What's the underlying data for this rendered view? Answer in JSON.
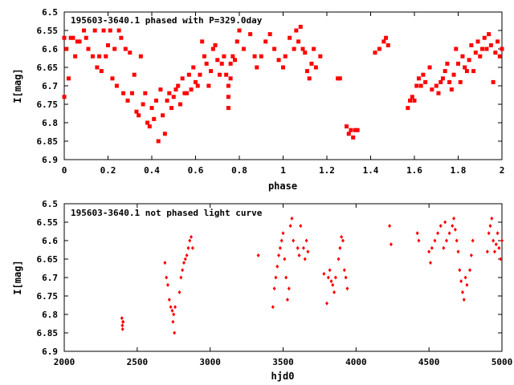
{
  "chart_data": [
    {
      "type": "scatter",
      "title": "195603-3640.1 phased with P=329.0day",
      "xlabel": "phase",
      "ylabel": "I[mag]",
      "xlim": [
        0,
        2
      ],
      "ylim": [
        6.9,
        6.5
      ],
      "y_inverted": true,
      "xticks": [
        "0",
        "0.2",
        "0.4",
        "0.6",
        "0.8",
        "1",
        "1.2",
        "1.4",
        "1.6",
        "1.8",
        "2"
      ],
      "xtick_values": [
        0,
        0.2,
        0.4,
        0.6,
        0.8,
        1.0,
        1.2,
        1.4,
        1.6,
        1.8,
        2.0
      ],
      "yticks": [
        "6.5",
        "6.55",
        "6.6",
        "6.65",
        "6.7",
        "6.75",
        "6.8",
        "6.85",
        "6.9"
      ],
      "ytick_values": [
        6.5,
        6.55,
        6.6,
        6.65,
        6.7,
        6.75,
        6.8,
        6.85,
        6.9
      ],
      "grid": false,
      "marker_color": "#ff0000",
      "series": [
        {
          "x": [
            0.0,
            0.0,
            0.01,
            0.02,
            0.03,
            0.04,
            0.05,
            0.06,
            0.07,
            0.09,
            0.1,
            0.11,
            0.13,
            0.14,
            0.15,
            0.16,
            0.17,
            0.18,
            0.19,
            0.2,
            0.21,
            0.22,
            0.23,
            0.24,
            0.25,
            0.26,
            0.27,
            0.28,
            0.29,
            0.3,
            0.31,
            0.32,
            0.33,
            0.34,
            0.35,
            0.36,
            0.37,
            0.38,
            0.39,
            0.4,
            0.41,
            0.42,
            0.43,
            0.44,
            0.45,
            0.46,
            0.47,
            0.48,
            0.49,
            0.5,
            0.51,
            0.52,
            0.53,
            0.54,
            0.55,
            0.56,
            0.57,
            0.58,
            0.59,
            0.6,
            0.61,
            0.62,
            0.63,
            0.64,
            0.65,
            0.66,
            0.67,
            0.68,
            0.69,
            0.7,
            0.71,
            0.72,
            0.73,
            0.74,
            0.75,
            0.75,
            0.75,
            0.76,
            0.76,
            0.77,
            0.78,
            0.79,
            0.8,
            0.82,
            0.85,
            0.87,
            0.88,
            0.9,
            0.92,
            0.94,
            0.96,
            0.98,
            1.0,
            1.01,
            1.03,
            1.05,
            1.06,
            1.07,
            1.08,
            1.09,
            1.1,
            1.11,
            1.12,
            1.13,
            1.14,
            1.15,
            1.17,
            1.25,
            1.26,
            1.29,
            1.3,
            1.31,
            1.32,
            1.33,
            1.34,
            1.42,
            1.44,
            1.46,
            1.47,
            1.48,
            1.57,
            1.58,
            1.59,
            1.6,
            1.61,
            1.62,
            1.63,
            1.64,
            1.65,
            1.67,
            1.68,
            1.7,
            1.71,
            1.72,
            1.73,
            1.74,
            1.75,
            1.76,
            1.77,
            1.78,
            1.79,
            1.8,
            1.81,
            1.82,
            1.83,
            1.84,
            1.85,
            1.86,
            1.87,
            1.88,
            1.89,
            1.9,
            1.91,
            1.92,
            1.93,
            1.94,
            1.95,
            1.96,
            1.97,
            1.98,
            1.99,
            2.0
          ],
          "y": [
            6.57,
            6.73,
            6.6,
            6.68,
            6.57,
            6.57,
            6.62,
            6.58,
            6.58,
            6.55,
            6.57,
            6.6,
            6.62,
            6.55,
            6.65,
            6.62,
            6.66,
            6.55,
            6.62,
            6.59,
            6.55,
            6.68,
            6.6,
            6.7,
            6.55,
            6.57,
            6.72,
            6.6,
            6.74,
            6.61,
            6.72,
            6.67,
            6.77,
            6.78,
            6.62,
            6.75,
            6.72,
            6.8,
            6.81,
            6.76,
            6.79,
            6.74,
            6.85,
            6.71,
            6.78,
            6.83,
            6.74,
            6.72,
            6.76,
            6.73,
            6.71,
            6.7,
            6.75,
            6.68,
            6.72,
            6.72,
            6.67,
            6.71,
            6.65,
            6.69,
            6.7,
            6.67,
            6.58,
            6.62,
            6.64,
            6.7,
            6.66,
            6.6,
            6.59,
            6.63,
            6.67,
            6.64,
            6.62,
            6.67,
            6.7,
            6.73,
            6.76,
            6.64,
            6.68,
            6.62,
            6.63,
            6.58,
            6.55,
            6.6,
            6.56,
            6.62,
            6.65,
            6.62,
            6.58,
            6.56,
            6.6,
            6.63,
            6.65,
            6.62,
            6.57,
            6.6,
            6.55,
            6.58,
            6.54,
            6.6,
            6.61,
            6.66,
            6.68,
            6.64,
            6.6,
            6.65,
            6.62,
            6.68,
            6.68,
            6.81,
            6.83,
            6.82,
            6.84,
            6.82,
            6.82,
            6.61,
            6.6,
            6.58,
            6.57,
            6.59,
            6.76,
            6.74,
            6.73,
            6.74,
            6.7,
            6.68,
            6.7,
            6.67,
            6.69,
            6.65,
            6.71,
            6.7,
            6.72,
            6.69,
            6.68,
            6.66,
            6.64,
            6.69,
            6.71,
            6.67,
            6.6,
            6.64,
            6.69,
            6.62,
            6.65,
            6.66,
            6.63,
            6.59,
            6.66,
            6.61,
            6.58,
            6.62,
            6.6,
            6.57,
            6.6,
            6.56,
            6.59,
            6.69,
            6.61,
            6.58,
            6.62,
            6.6
          ]
        }
      ]
    },
    {
      "type": "scatter",
      "title": "195603-3640.1 not phased light curve",
      "xlabel": "hjd0",
      "ylabel": "I[mag]",
      "xlim": [
        2000,
        5000
      ],
      "ylim": [
        6.9,
        6.5
      ],
      "y_inverted": true,
      "xticks": [
        "2000",
        "2500",
        "3000",
        "3500",
        "4000",
        "4500",
        "5000"
      ],
      "xtick_values": [
        2000,
        2500,
        3000,
        3500,
        4000,
        4500,
        5000
      ],
      "yticks": [
        "6.5",
        "6.55",
        "6.6",
        "6.65",
        "6.7",
        "6.75",
        "6.8",
        "6.85",
        "6.9"
      ],
      "ytick_values": [
        6.5,
        6.55,
        6.6,
        6.65,
        6.7,
        6.75,
        6.8,
        6.85,
        6.9
      ],
      "grid": false,
      "marker_color": "#ff0000",
      "series": [
        {
          "x": [
            2395,
            2398,
            2400,
            2402,
            2404,
            2690,
            2700,
            2710,
            2720,
            2730,
            2740,
            2745,
            2750,
            2755,
            2760,
            2790,
            2800,
            2810,
            2820,
            2830,
            2840,
            2850,
            2860,
            2870,
            2880,
            3330,
            3430,
            3440,
            3450,
            3460,
            3470,
            3480,
            3490,
            3500,
            3510,
            3520,
            3530,
            3540,
            3550,
            3560,
            3570,
            3600,
            3610,
            3620,
            3640,
            3650,
            3660,
            3670,
            3780,
            3800,
            3810,
            3820,
            3830,
            3840,
            3850,
            3860,
            3880,
            3890,
            3900,
            3910,
            3920,
            3930,
            3940,
            4230,
            4240,
            4420,
            4430,
            4500,
            4510,
            4520,
            4540,
            4560,
            4580,
            4600,
            4610,
            4620,
            4640,
            4660,
            4670,
            4680,
            4690,
            4700,
            4710,
            4720,
            4730,
            4740,
            4750,
            4760,
            4780,
            4790,
            4800,
            4900,
            4910,
            4920,
            4930,
            4940,
            4950,
            4960,
            4970,
            4980,
            4990,
            5000
          ],
          "y": [
            6.81,
            6.83,
            6.84,
            6.82,
            6.82,
            6.66,
            6.7,
            6.72,
            6.76,
            6.78,
            6.79,
            6.82,
            6.8,
            6.85,
            6.78,
            6.74,
            6.7,
            6.68,
            6.66,
            6.65,
            6.64,
            6.62,
            6.6,
            6.59,
            6.62,
            6.64,
            6.78,
            6.73,
            6.7,
            6.67,
            6.64,
            6.62,
            6.6,
            6.58,
            6.65,
            6.7,
            6.76,
            6.73,
            6.56,
            6.54,
            6.6,
            6.62,
            6.64,
            6.56,
            6.62,
            6.65,
            6.6,
            6.63,
            6.69,
            6.77,
            6.7,
            6.68,
            6.71,
            6.72,
            6.74,
            6.7,
            6.65,
            6.62,
            6.59,
            6.6,
            6.68,
            6.7,
            6.73,
            6.56,
            6.61,
            6.58,
            6.6,
            6.63,
            6.66,
            6.62,
            6.6,
            6.58,
            6.56,
            6.62,
            6.55,
            6.6,
            6.58,
            6.56,
            6.54,
            6.57,
            6.6,
            6.63,
            6.68,
            6.71,
            6.74,
            6.76,
            6.7,
            6.72,
            6.68,
            6.64,
            6.6,
            6.63,
            6.58,
            6.56,
            6.54,
            6.6,
            6.63,
            6.61,
            6.58,
            6.62,
            6.65,
            6.6
          ]
        }
      ]
    }
  ]
}
